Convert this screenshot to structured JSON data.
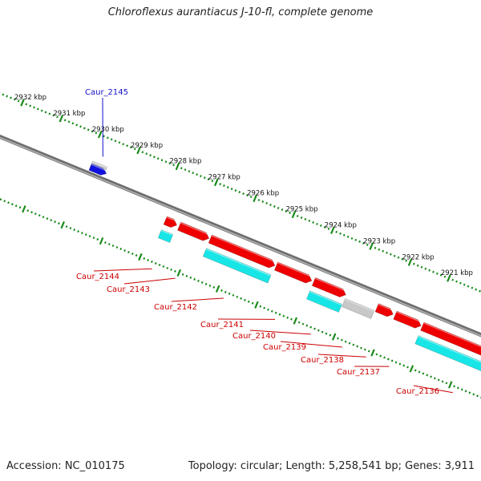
{
  "title": "Chloroflexus aurantiacus J-10-fl, complete genome",
  "footer": {
    "accession": "Accession: NC_010175",
    "summary": "Topology: circular; Length: 5,258,541 bp; Genes: 3,911"
  },
  "colors": {
    "backbone": "#8a8a8a",
    "ruler": "#1a8a1a",
    "forward_gene": "#1111dd",
    "reverse_gene": "#ee0000",
    "rna_gene": "#18e6e6",
    "pseudo_gene": "#c8c8c8",
    "label_forward": "#1111cc",
    "label_reverse": "#cc0000"
  },
  "scale": {
    "unit": "kbp",
    "ticks": [
      {
        "kbp": 2932,
        "label": "2932 kbp"
      },
      {
        "kbp": 2931,
        "label": "2931 kbp"
      },
      {
        "kbp": 2930,
        "label": "2930 kbp"
      },
      {
        "kbp": 2929,
        "label": "2929 kbp"
      },
      {
        "kbp": 2928,
        "label": "2928 kbp"
      },
      {
        "kbp": 2927,
        "label": "2927 kbp"
      },
      {
        "kbp": 2926,
        "label": "2926 kbp"
      },
      {
        "kbp": 2925,
        "label": "2925 kbp"
      },
      {
        "kbp": 2924,
        "label": "2924 kbp"
      },
      {
        "kbp": 2923,
        "label": "2923 kbp"
      },
      {
        "kbp": 2922,
        "label": "2922 kbp"
      },
      {
        "kbp": 2921,
        "label": "2921 kbp"
      }
    ]
  },
  "genes": [
    {
      "label": "Caur_2145",
      "strand": "forward",
      "track": "forward_cds",
      "start_kbp": 2929.92,
      "end_kbp": 2929.55,
      "upper_feature": "pseudo"
    },
    {
      "label": "Caur_2144",
      "strand": "reverse",
      "track": "reverse_cds",
      "start_kbp": 2927.78,
      "end_kbp": 2927.48,
      "rna": true
    },
    {
      "label": "Caur_2143",
      "strand": "reverse",
      "track": "reverse_cds",
      "start_kbp": 2927.42,
      "end_kbp": 2926.65
    },
    {
      "label": "Caur_2142",
      "strand": "reverse",
      "track": "reverse_cds",
      "start_kbp": 2926.62,
      "end_kbp": 2924.95,
      "rna": true
    },
    {
      "label": "Caur_2141",
      "strand": "reverse",
      "track": "reverse_cds",
      "start_kbp": 2924.92,
      "end_kbp": 2924.0
    },
    {
      "label": "Caur_2140",
      "strand": "reverse",
      "track": "reverse_cds",
      "start_kbp": 2923.95,
      "end_kbp": 2923.12,
      "rna": true
    },
    {
      "label": "Caur_2139",
      "strand": "reverse",
      "track": "rna",
      "start_kbp": 2923.1,
      "end_kbp": 2922.35,
      "pseudo": true
    },
    {
      "label": "Caur_2138",
      "strand": "reverse",
      "track": "reverse_cds",
      "start_kbp": 2922.32,
      "end_kbp": 2921.9
    },
    {
      "label": "Caur_2137",
      "strand": "reverse",
      "track": "reverse_cds",
      "start_kbp": 2921.85,
      "end_kbp": 2921.18
    },
    {
      "label": "Caur_2136",
      "strand": "reverse",
      "track": "reverse_cds",
      "start_kbp": 2921.15,
      "end_kbp": 2918.6,
      "rna": true
    }
  ]
}
